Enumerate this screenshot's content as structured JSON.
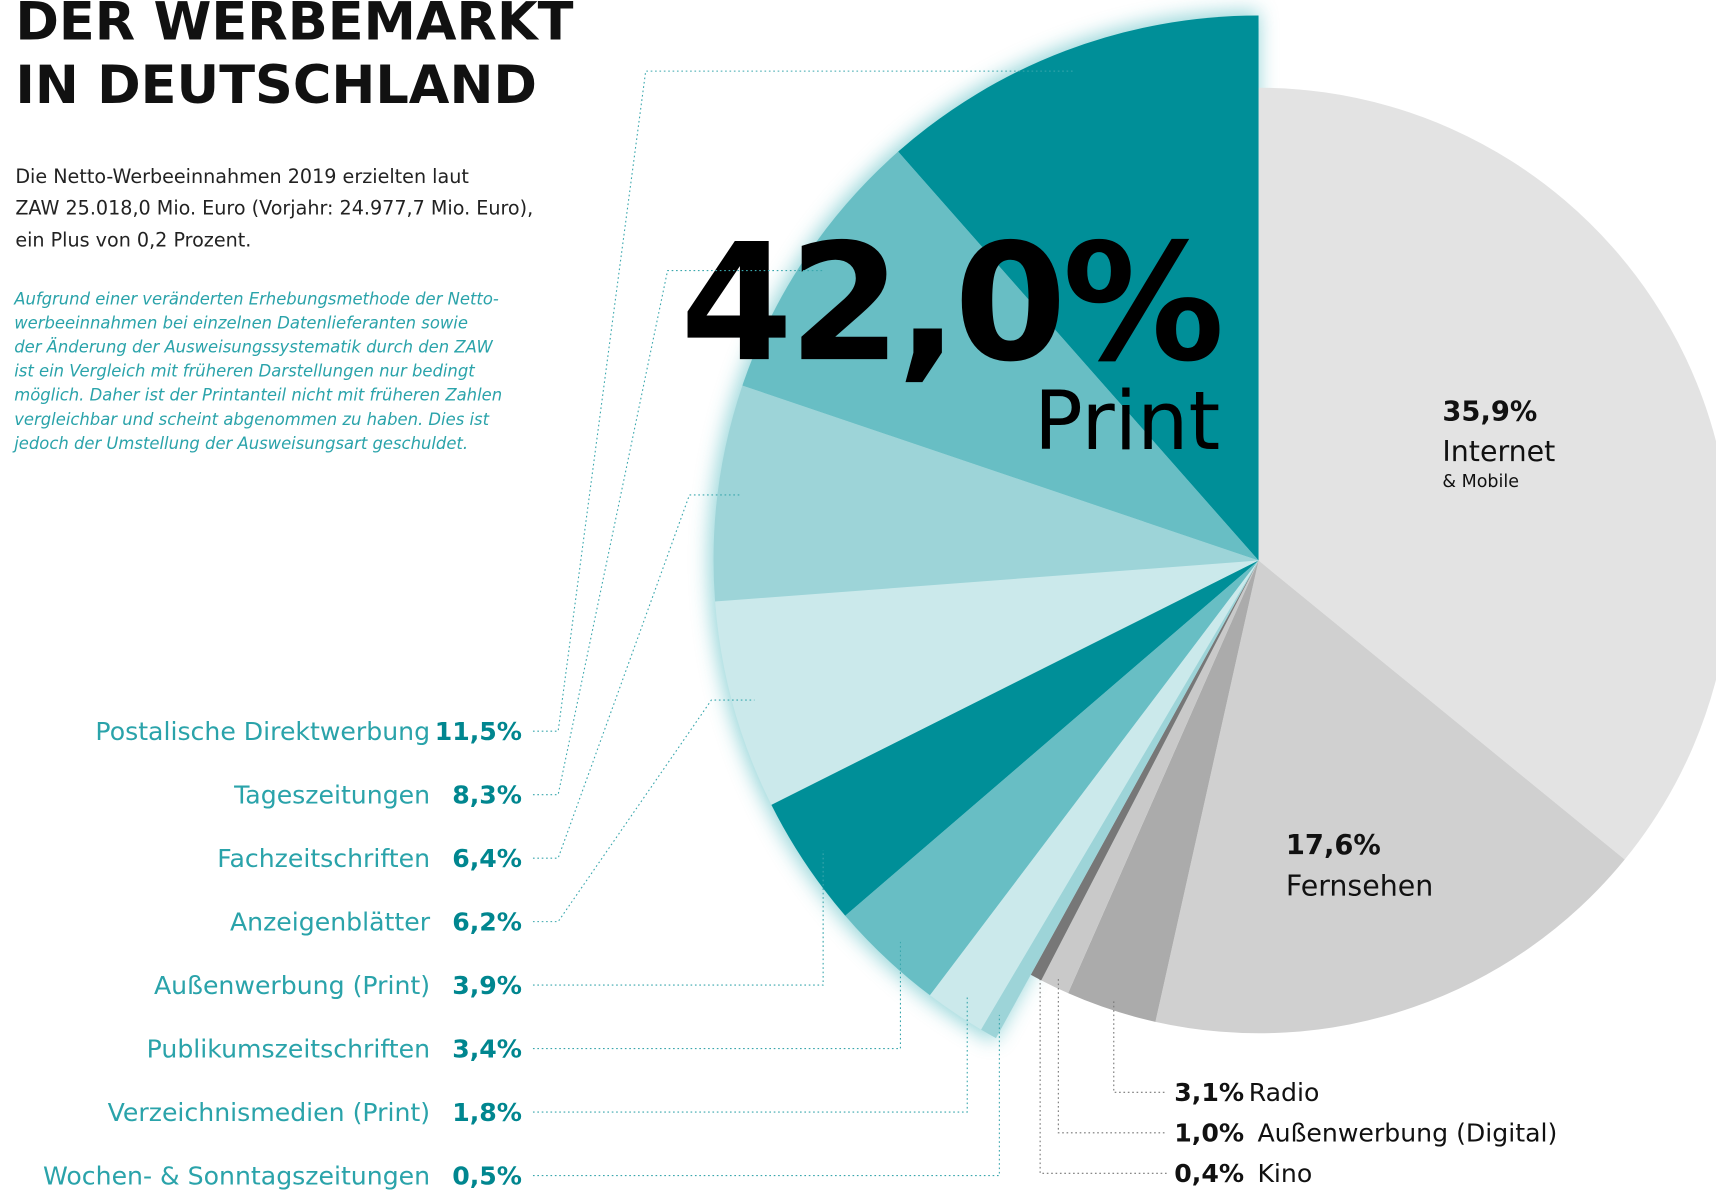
{
  "chart_data": {
    "type": "pie",
    "title_lines": [
      "DER WERBEMARKT",
      "IN DEUTSCHLAND"
    ],
    "text_lines": [
      "Die Netto-Werbeeinnahmen 2019 erzielten laut",
      "ZAW 25.018,0 Mio. Euro (Vorjahr: 24.977,7 Mio. Euro),",
      "ein Plus von 0,2 Prozent."
    ],
    "note_lines": [
      "Aufgrund einer veränderten Erhebungsmethode der Netto-",
      "werbeeinnahmen bei einzelnen Datenlieferanten sowie",
      "der Änderung der Ausweisungssystematik durch den ZAW",
      "ist ein Vergleich mit früheren Darstellungen nur bedingt",
      "möglich. Daher ist der Printanteil nicht mit früheren Zahlen",
      "vergleichbar und scheint abgenommen zu haben. Dies ist",
      "jedoch der Umstellung der Ausweisungsart geschuldet."
    ],
    "print": {
      "name": "Print",
      "total": 42.0,
      "total_label": "42,0%",
      "categories": [
        "Postalische Direktwerbung",
        "Tageszeitungen",
        "Fachzeitschriften",
        "Anzeigenblätter",
        "Außenwerbung (Print)",
        "Publikumszeitschriften",
        "Verzeichnismedien (Print)",
        "Wochen- & Sonntagszeitungen"
      ],
      "values": [
        11.5,
        8.3,
        6.4,
        6.2,
        3.9,
        3.4,
        1.8,
        0.5
      ],
      "value_labels": [
        "11,5%",
        "8,3%",
        "6,4%",
        "6,2%",
        "3,9%",
        "3,4%",
        "1,8%",
        "0,5%"
      ],
      "colors": [
        "#008f98",
        "#68bec4",
        "#9dd4d8",
        "#cbe9eb",
        "#008f98",
        "#68bec4",
        "#cbe9eb",
        "#9dd4d8"
      ]
    },
    "other": {
      "categories": [
        "Internet",
        "Fernsehen",
        "Radio",
        "Außenwerbung (Digital)",
        "Kino"
      ],
      "sublabel": "& Mobile",
      "values": [
        35.9,
        17.6,
        3.1,
        1.0,
        0.4
      ],
      "value_labels": [
        "35,9%",
        "17,6%",
        "3,1%",
        "1,0%",
        "0,4%"
      ],
      "colors": [
        "#e3e3e3",
        "#d0d0d0",
        "#ababab",
        "#c9c9c9",
        "#777777"
      ]
    }
  }
}
